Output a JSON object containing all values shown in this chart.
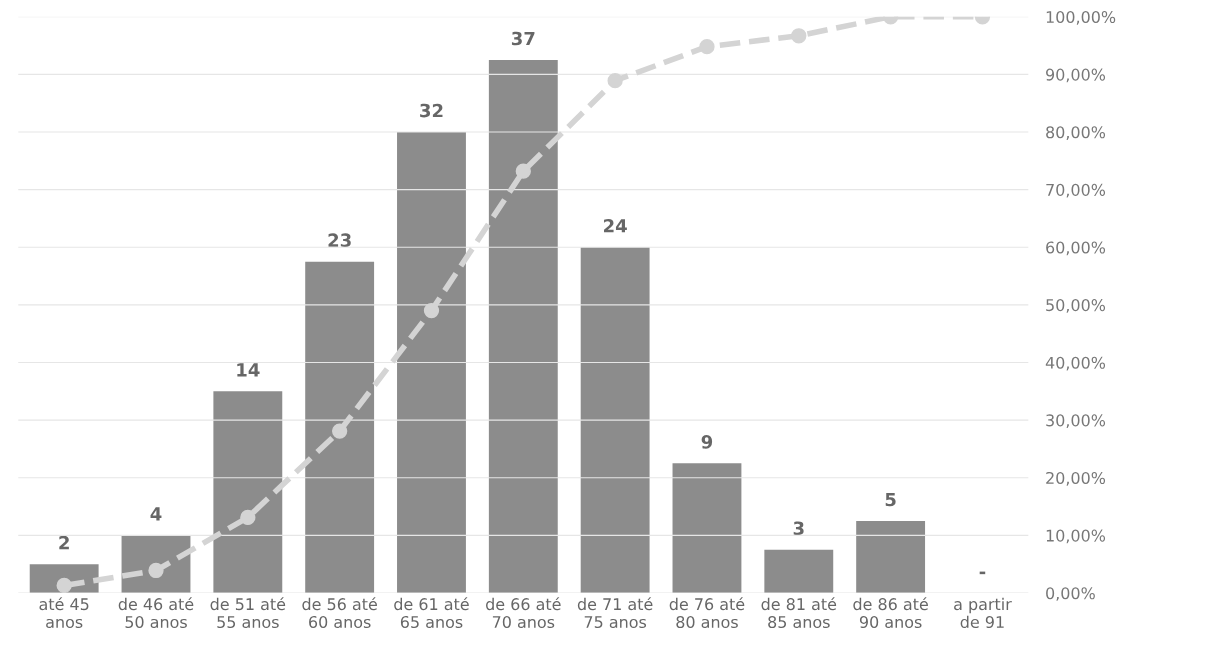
{
  "chart_data": {
    "type": "bar",
    "categories": [
      "até 45\nanos",
      "de 46 até\n50 anos",
      "de 51 até\n55 anos",
      "de 56 até\n60 anos",
      "de 61 até\n65 anos",
      "de 66 até\n70 anos",
      "de 71 até\n75 anos",
      "de 76 até\n80 anos",
      "de 81 até\n85 anos",
      "de 86 até\n90 anos",
      "a partir\nde 91"
    ],
    "series": [
      {
        "color": "#8c8c8c",
        "values": [
          2,
          4,
          14,
          23,
          32,
          37,
          24,
          9,
          3,
          5,
          0
        ],
        "value_labels": [
          "2",
          "4",
          "14",
          "23",
          "32",
          "37",
          "24",
          "9",
          "3",
          "5",
          "-"
        ]
      },
      {
        "type": "line",
        "axis": "y2",
        "color": "#d4d4d4",
        "marker": "circle",
        "line_style": "dashed",
        "values": [
          1.3,
          3.9,
          13.1,
          28.1,
          49.0,
          73.2,
          88.9,
          94.8,
          96.7,
          100,
          100
        ]
      }
    ],
    "ylim": [
      0,
      40
    ],
    "y2lim": [
      0,
      100
    ],
    "y2ticks": [
      {
        "value": 0,
        "label": "0,00%"
      },
      {
        "value": 10,
        "label": "10,00%"
      },
      {
        "value": 20,
        "label": "20,00%"
      },
      {
        "value": 30,
        "label": "30,00%"
      },
      {
        "value": 40,
        "label": "40,00%"
      },
      {
        "value": 50,
        "label": "50,00%"
      },
      {
        "value": 60,
        "label": "60,00%"
      },
      {
        "value": 70,
        "label": "70,00%"
      },
      {
        "value": 80,
        "label": "80,00%"
      },
      {
        "value": 90,
        "label": "90,00%"
      },
      {
        "value": 100,
        "label": "100,00%"
      }
    ],
    "grid": "y2"
  }
}
